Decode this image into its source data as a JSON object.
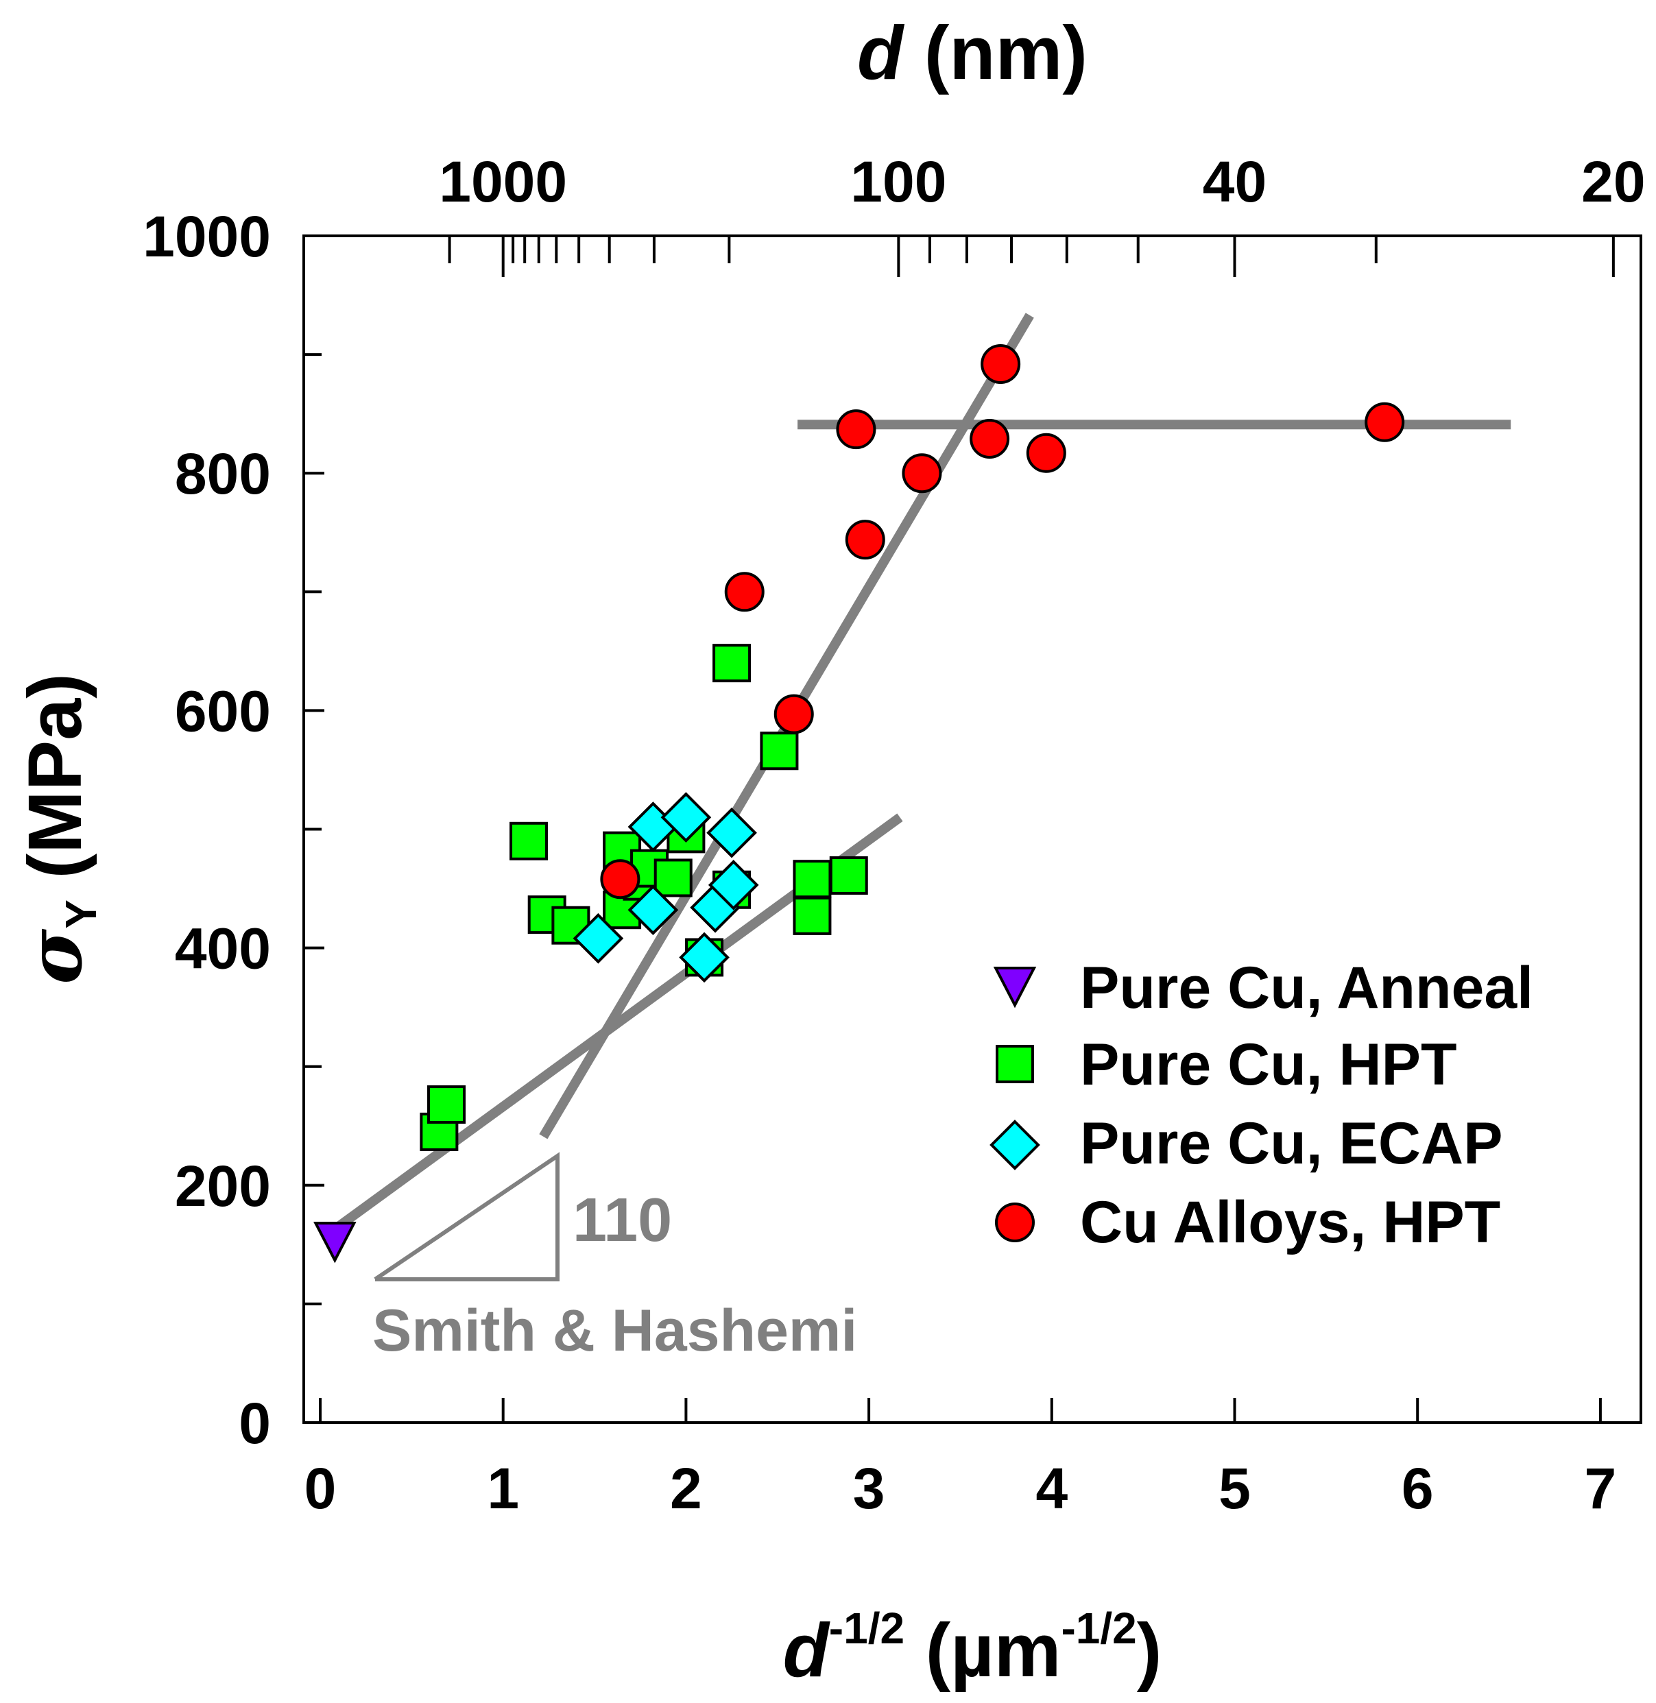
{
  "chart_data": {
    "type": "scatter",
    "title": "",
    "xlabel": "d^-1/2 (µm^-1/2)",
    "xlabel_parts": {
      "var": "d",
      "sup1": "-1/2",
      "unit_open": " (µm",
      "sup2": "-1/2",
      "unit_close": ")"
    },
    "ylabel_parts": {
      "sym": "σ",
      "sub": "Y",
      "unit": " (MPa)"
    },
    "top_label_parts": {
      "var": "d",
      "unit": " (nm)"
    },
    "xlim": [
      -0.1,
      7.2
    ],
    "ylim": [
      0,
      1000
    ],
    "x_ticks": [
      "0",
      "1",
      "2",
      "3",
      "4",
      "5",
      "6",
      "7"
    ],
    "y_ticks": [
      "0",
      "200",
      "400",
      "600",
      "800",
      "1000"
    ],
    "y_minor_ticks": [
      100,
      300,
      500,
      700,
      900
    ],
    "top_axis": {
      "transform": "x = 1/sqrt(d_um)",
      "labels": [
        "1000",
        "100",
        "40",
        "20"
      ],
      "label_values_nm": [
        1000,
        100,
        40,
        20
      ],
      "minor_ticks_nm": [
        2000,
        900,
        800,
        700,
        600,
        500,
        400,
        300,
        200,
        90,
        80,
        70,
        60,
        50,
        30
      ]
    },
    "grid": false,
    "legend_position": "right-middle",
    "series": [
      {
        "name": "Pure Cu, Anneal",
        "marker": "triangle-down",
        "color": "#7f00ff",
        "points": [
          [
            0.08,
            153
          ]
        ]
      },
      {
        "name": "Pure Cu, HPT",
        "marker": "square",
        "color": "#00ff00",
        "points": [
          [
            0.65,
            245
          ],
          [
            0.69,
            268
          ],
          [
            1.14,
            490
          ],
          [
            1.24,
            428
          ],
          [
            1.37,
            419
          ],
          [
            1.65,
            482
          ],
          [
            1.65,
            432
          ],
          [
            1.76,
            456
          ],
          [
            1.8,
            467
          ],
          [
            1.93,
            459
          ],
          [
            2.0,
            496
          ],
          [
            2.1,
            392
          ],
          [
            2.25,
            640
          ],
          [
            2.25,
            449
          ],
          [
            2.51,
            566
          ],
          [
            2.69,
            458
          ],
          [
            2.69,
            427
          ],
          [
            2.89,
            461
          ]
        ]
      },
      {
        "name": "Pure Cu, ECAP",
        "marker": "diamond",
        "color": "#00ffff",
        "points": [
          [
            1.52,
            408
          ],
          [
            1.82,
            502
          ],
          [
            1.82,
            432
          ],
          [
            2.0,
            510
          ],
          [
            2.1,
            392
          ],
          [
            2.16,
            434
          ],
          [
            2.25,
            497
          ],
          [
            2.26,
            453
          ]
        ]
      },
      {
        "name": "Cu Alloys, HPT",
        "marker": "circle",
        "color": "#ff0000",
        "points": [
          [
            1.64,
            458
          ],
          [
            2.32,
            700
          ],
          [
            2.59,
            597
          ],
          [
            2.93,
            837
          ],
          [
            2.98,
            744
          ],
          [
            3.29,
            800
          ],
          [
            3.66,
            829
          ],
          [
            3.72,
            892
          ],
          [
            3.97,
            817
          ],
          [
            5.82,
            843
          ]
        ]
      }
    ],
    "fit_lines": [
      {
        "name": "shallow fit",
        "color": "#808080",
        "points": [
          [
            0.08,
            163
          ],
          [
            3.17,
            510
          ]
        ]
      },
      {
        "name": "steep fit",
        "color": "#808080",
        "points": [
          [
            1.22,
            241
          ],
          [
            3.88,
            933
          ]
        ]
      },
      {
        "name": "plateau",
        "color": "#808080",
        "points": [
          [
            2.61,
            841
          ],
          [
            6.51,
            841
          ]
        ]
      }
    ],
    "annotations": [
      {
        "text": "110",
        "role": "slope-triangle-label"
      },
      {
        "text": "Smith & Hashemi",
        "role": "slope-triangle-caption"
      }
    ]
  }
}
